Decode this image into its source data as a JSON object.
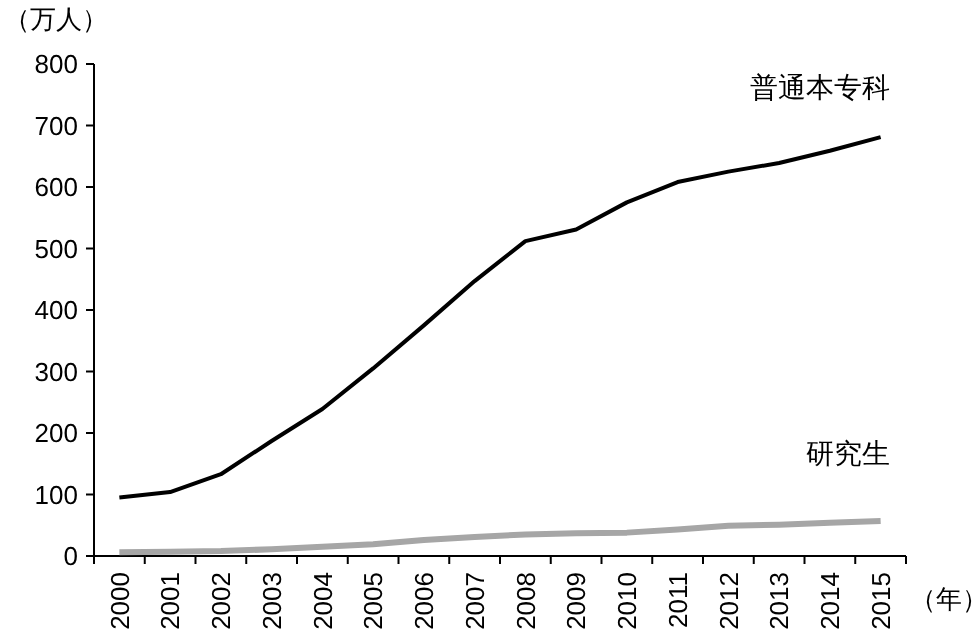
{
  "chart_data": {
    "type": "line",
    "ylabel": "（万人）",
    "xlabel": "（年）",
    "categories": [
      "2000",
      "2001",
      "2002",
      "2003",
      "2004",
      "2005",
      "2006",
      "2007",
      "2008",
      "2009",
      "2010",
      "2011",
      "2012",
      "2013",
      "2014",
      "2015"
    ],
    "series": [
      {
        "name": "普通本专科",
        "color": "#000000",
        "values": [
          95,
          104,
          133,
          187,
          239,
          305,
          375,
          447,
          512,
          531,
          575,
          608,
          625,
          639,
          659,
          681
        ]
      },
      {
        "name": "研究生",
        "color": "#a6a6a6",
        "values": [
          6,
          7,
          8,
          11,
          15,
          19,
          26,
          31,
          35,
          37,
          38,
          43,
          49,
          51,
          54,
          57
        ]
      }
    ],
    "ylim": [
      0,
      800
    ],
    "yticks": [
      0,
      100,
      200,
      300,
      400,
      500,
      600,
      700,
      800
    ],
    "grid": false,
    "legend": false,
    "marker": "none",
    "line_style": "solid"
  }
}
